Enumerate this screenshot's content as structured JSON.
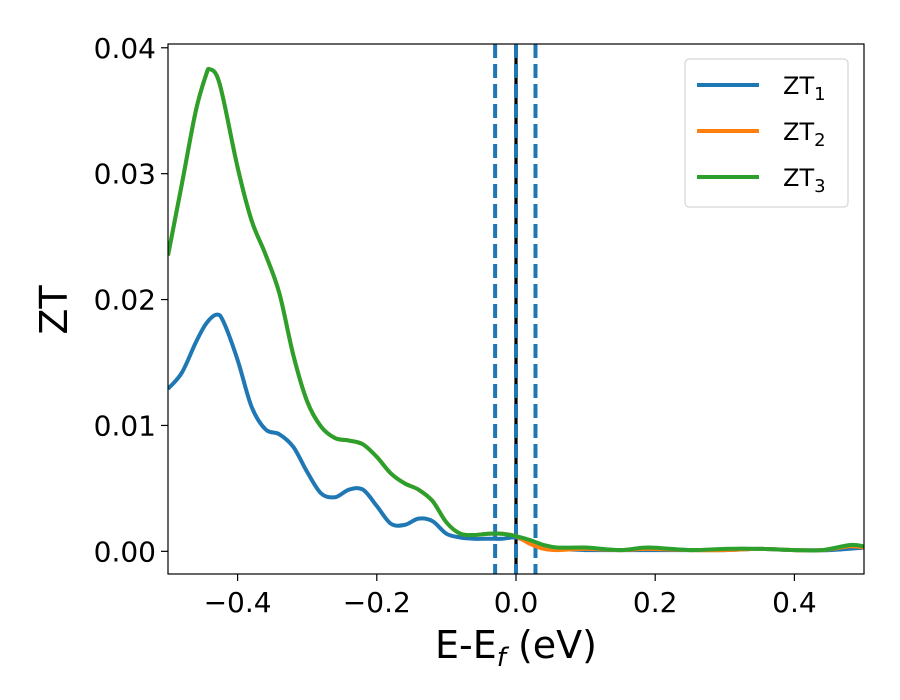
{
  "chart_data": {
    "type": "line",
    "title": "",
    "xlabel": "E-E",
    "xlabel_sub": "f",
    "xlabel_unit": " (eV)",
    "ylabel": "ZT",
    "xlim": [
      -0.5,
      0.5
    ],
    "ylim": [
      -0.0018,
      0.0403
    ],
    "grid": false,
    "legend_position": "top-right",
    "xticks": [
      -0.4,
      -0.2,
      0.0,
      0.2,
      0.4
    ],
    "xtick_labels": [
      "−0.4",
      "−0.2",
      "0.0",
      "0.2",
      "0.4"
    ],
    "yticks": [
      0.0,
      0.01,
      0.02,
      0.03,
      0.04
    ],
    "ytick_labels": [
      "0.00",
      "0.01",
      "0.02",
      "0.03",
      "0.04"
    ],
    "series": [
      {
        "name": "ZT",
        "name_sub": "1",
        "color": "#1f77b4",
        "x": [
          -0.5,
          -0.48,
          -0.46,
          -0.445,
          -0.43,
          -0.42,
          -0.4,
          -0.38,
          -0.36,
          -0.34,
          -0.32,
          -0.3,
          -0.28,
          -0.26,
          -0.24,
          -0.22,
          -0.2,
          -0.18,
          -0.16,
          -0.14,
          -0.12,
          -0.1,
          -0.08,
          -0.06,
          -0.04,
          -0.02,
          0.0,
          0.02,
          0.04,
          0.06,
          0.1,
          0.15,
          0.2,
          0.25,
          0.3,
          0.35,
          0.4,
          0.45,
          0.5
        ],
        "y": [
          0.0129,
          0.0142,
          0.0166,
          0.0181,
          0.0188,
          0.0182,
          0.0152,
          0.0115,
          0.0097,
          0.0093,
          0.0083,
          0.0063,
          0.0046,
          0.0043,
          0.0049,
          0.0049,
          0.0036,
          0.0022,
          0.0021,
          0.0026,
          0.0024,
          0.0014,
          0.0011,
          0.001,
          0.001,
          0.001,
          0.0011,
          0.0007,
          0.0004,
          0.0002,
          0.0001,
          0.0001,
          0.0001,
          0.0001,
          0.0001,
          0.0002,
          0.0001,
          0.0001,
          0.0003
        ]
      },
      {
        "name": "ZT",
        "name_sub": "2",
        "color": "#ff7f0e",
        "x": [
          -0.5,
          -0.48,
          -0.46,
          -0.445,
          -0.44,
          -0.43,
          -0.42,
          -0.4,
          -0.38,
          -0.36,
          -0.34,
          -0.32,
          -0.3,
          -0.28,
          -0.26,
          -0.24,
          -0.22,
          -0.2,
          -0.18,
          -0.16,
          -0.14,
          -0.12,
          -0.1,
          -0.08,
          -0.06,
          -0.04,
          -0.02,
          0.0,
          0.02,
          0.04,
          0.06,
          0.1,
          0.15,
          0.19,
          0.25,
          0.3,
          0.35,
          0.4,
          0.44,
          0.48,
          0.5
        ],
        "y": [
          0.0235,
          0.0292,
          0.035,
          0.0379,
          0.0383,
          0.0378,
          0.0358,
          0.0305,
          0.0263,
          0.0236,
          0.0205,
          0.0156,
          0.0119,
          0.0099,
          0.009,
          0.0088,
          0.0085,
          0.0075,
          0.0062,
          0.0054,
          0.0049,
          0.004,
          0.0023,
          0.0014,
          0.0013,
          0.0014,
          0.0014,
          0.0012,
          0.0006,
          0.0002,
          0.0001,
          0.0002,
          0.0001,
          0.0002,
          0.0001,
          0.0001,
          0.0002,
          0.0001,
          0.0001,
          0.0004,
          0.0003
        ]
      },
      {
        "name": "ZT",
        "name_sub": "3",
        "color": "#2ca02c",
        "x": [
          -0.5,
          -0.48,
          -0.46,
          -0.445,
          -0.44,
          -0.43,
          -0.42,
          -0.4,
          -0.38,
          -0.36,
          -0.34,
          -0.32,
          -0.3,
          -0.28,
          -0.26,
          -0.24,
          -0.22,
          -0.2,
          -0.18,
          -0.16,
          -0.14,
          -0.12,
          -0.1,
          -0.08,
          -0.06,
          -0.04,
          -0.02,
          0.0,
          0.02,
          0.04,
          0.06,
          0.1,
          0.15,
          0.19,
          0.25,
          0.3,
          0.35,
          0.4,
          0.44,
          0.48,
          0.5
        ],
        "y": [
          0.0235,
          0.0292,
          0.035,
          0.0379,
          0.0383,
          0.0378,
          0.0358,
          0.0305,
          0.0263,
          0.0236,
          0.0205,
          0.0156,
          0.0119,
          0.0099,
          0.009,
          0.0088,
          0.0085,
          0.0075,
          0.0062,
          0.0054,
          0.0049,
          0.004,
          0.0023,
          0.0014,
          0.0013,
          0.0014,
          0.0014,
          0.0012,
          0.0009,
          0.0005,
          0.0003,
          0.0003,
          0.0001,
          0.0003,
          0.0001,
          0.0002,
          0.0002,
          0.0001,
          0.0001,
          0.0005,
          0.0004
        ]
      }
    ],
    "vlines": [
      {
        "x": -0.03,
        "color": "#1f77b4",
        "style": "dashed"
      },
      {
        "x": 0.0,
        "color": "#000000",
        "style": "solid"
      },
      {
        "x": 0.0,
        "color": "#1f77b4",
        "style": "dashed"
      },
      {
        "x": 0.028,
        "color": "#1f77b4",
        "style": "dashed"
      }
    ]
  }
}
